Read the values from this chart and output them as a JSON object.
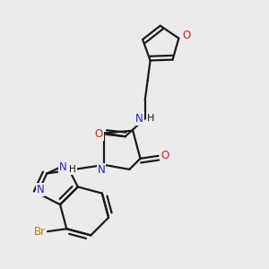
{
  "background_color": "#ebebeb",
  "bond_color": "#1a1a1a",
  "nitrogen_color": "#2222cc",
  "oxygen_color": "#cc2222",
  "bromine_color": "#cc7700",
  "line_width": 1.6,
  "figsize": [
    3.0,
    3.0
  ],
  "dpi": 100,
  "xlim": [
    0.0,
    1.0
  ],
  "ylim": [
    0.0,
    1.0
  ]
}
